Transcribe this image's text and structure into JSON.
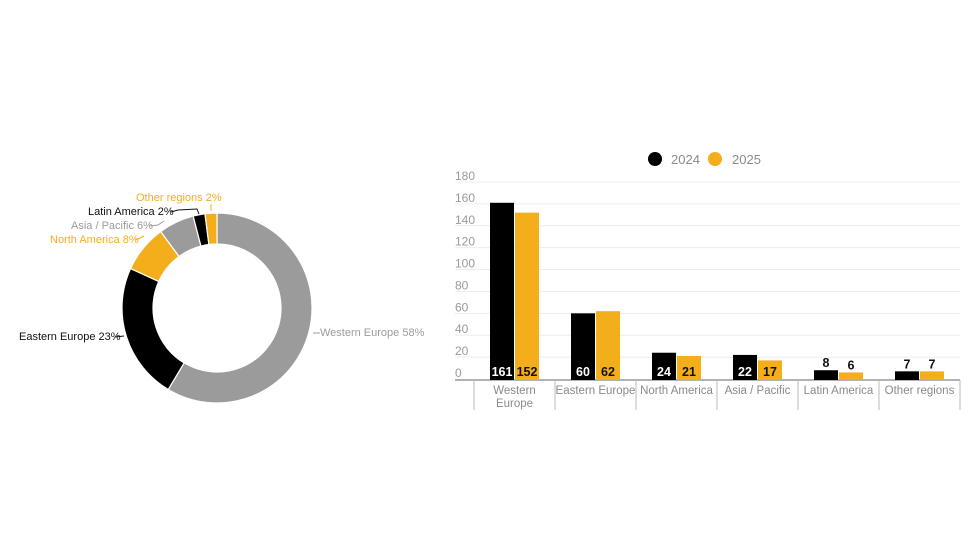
{
  "chart_data": [
    {
      "type": "pie",
      "donut": true,
      "slices": [
        {
          "label": "Western Europe 58%",
          "name": "Western Europe",
          "value": 58,
          "color": "#9b9b9b",
          "label_color": "#9b9b9b"
        },
        {
          "label": "Eastern Europe 23%",
          "name": "Eastern Europe",
          "value": 23,
          "color": "#000000",
          "label_color": "#111111"
        },
        {
          "label": "North America 8%",
          "name": "North America",
          "value": 8,
          "color": "#f5ae1b",
          "label_color": "#f5ae1b"
        },
        {
          "label": "Asia / Pacific 6%",
          "name": "Asia / Pacific",
          "value": 6,
          "color": "#9b9b9b",
          "label_color": "#9b9b9b"
        },
        {
          "label": "Latin America 2%",
          "name": "Latin America",
          "value": 2,
          "color": "#000000",
          "label_color": "#111111"
        },
        {
          "label": "Other regions 2%",
          "name": "Other regions",
          "value": 2,
          "color": "#f5ae1b",
          "label_color": "#f5ae1b"
        }
      ]
    },
    {
      "type": "bar",
      "categories": [
        "Western Europe",
        "Eastern Europe",
        "North America",
        "Asia / Pacific",
        "Latin America",
        "Other regions"
      ],
      "series": [
        {
          "name": "2024",
          "values": [
            161,
            60,
            24,
            22,
            8,
            7
          ],
          "color": "#000000"
        },
        {
          "name": "2025",
          "values": [
            152,
            62,
            21,
            17,
            6,
            7
          ],
          "color": "#f5ae1b"
        }
      ],
      "yticks": [
        "0",
        "20",
        "40",
        "60",
        "80",
        "100",
        "120",
        "140",
        "160",
        "180"
      ],
      "ylim": [
        0,
        180
      ],
      "grid": true,
      "legend": "top-center"
    }
  ]
}
